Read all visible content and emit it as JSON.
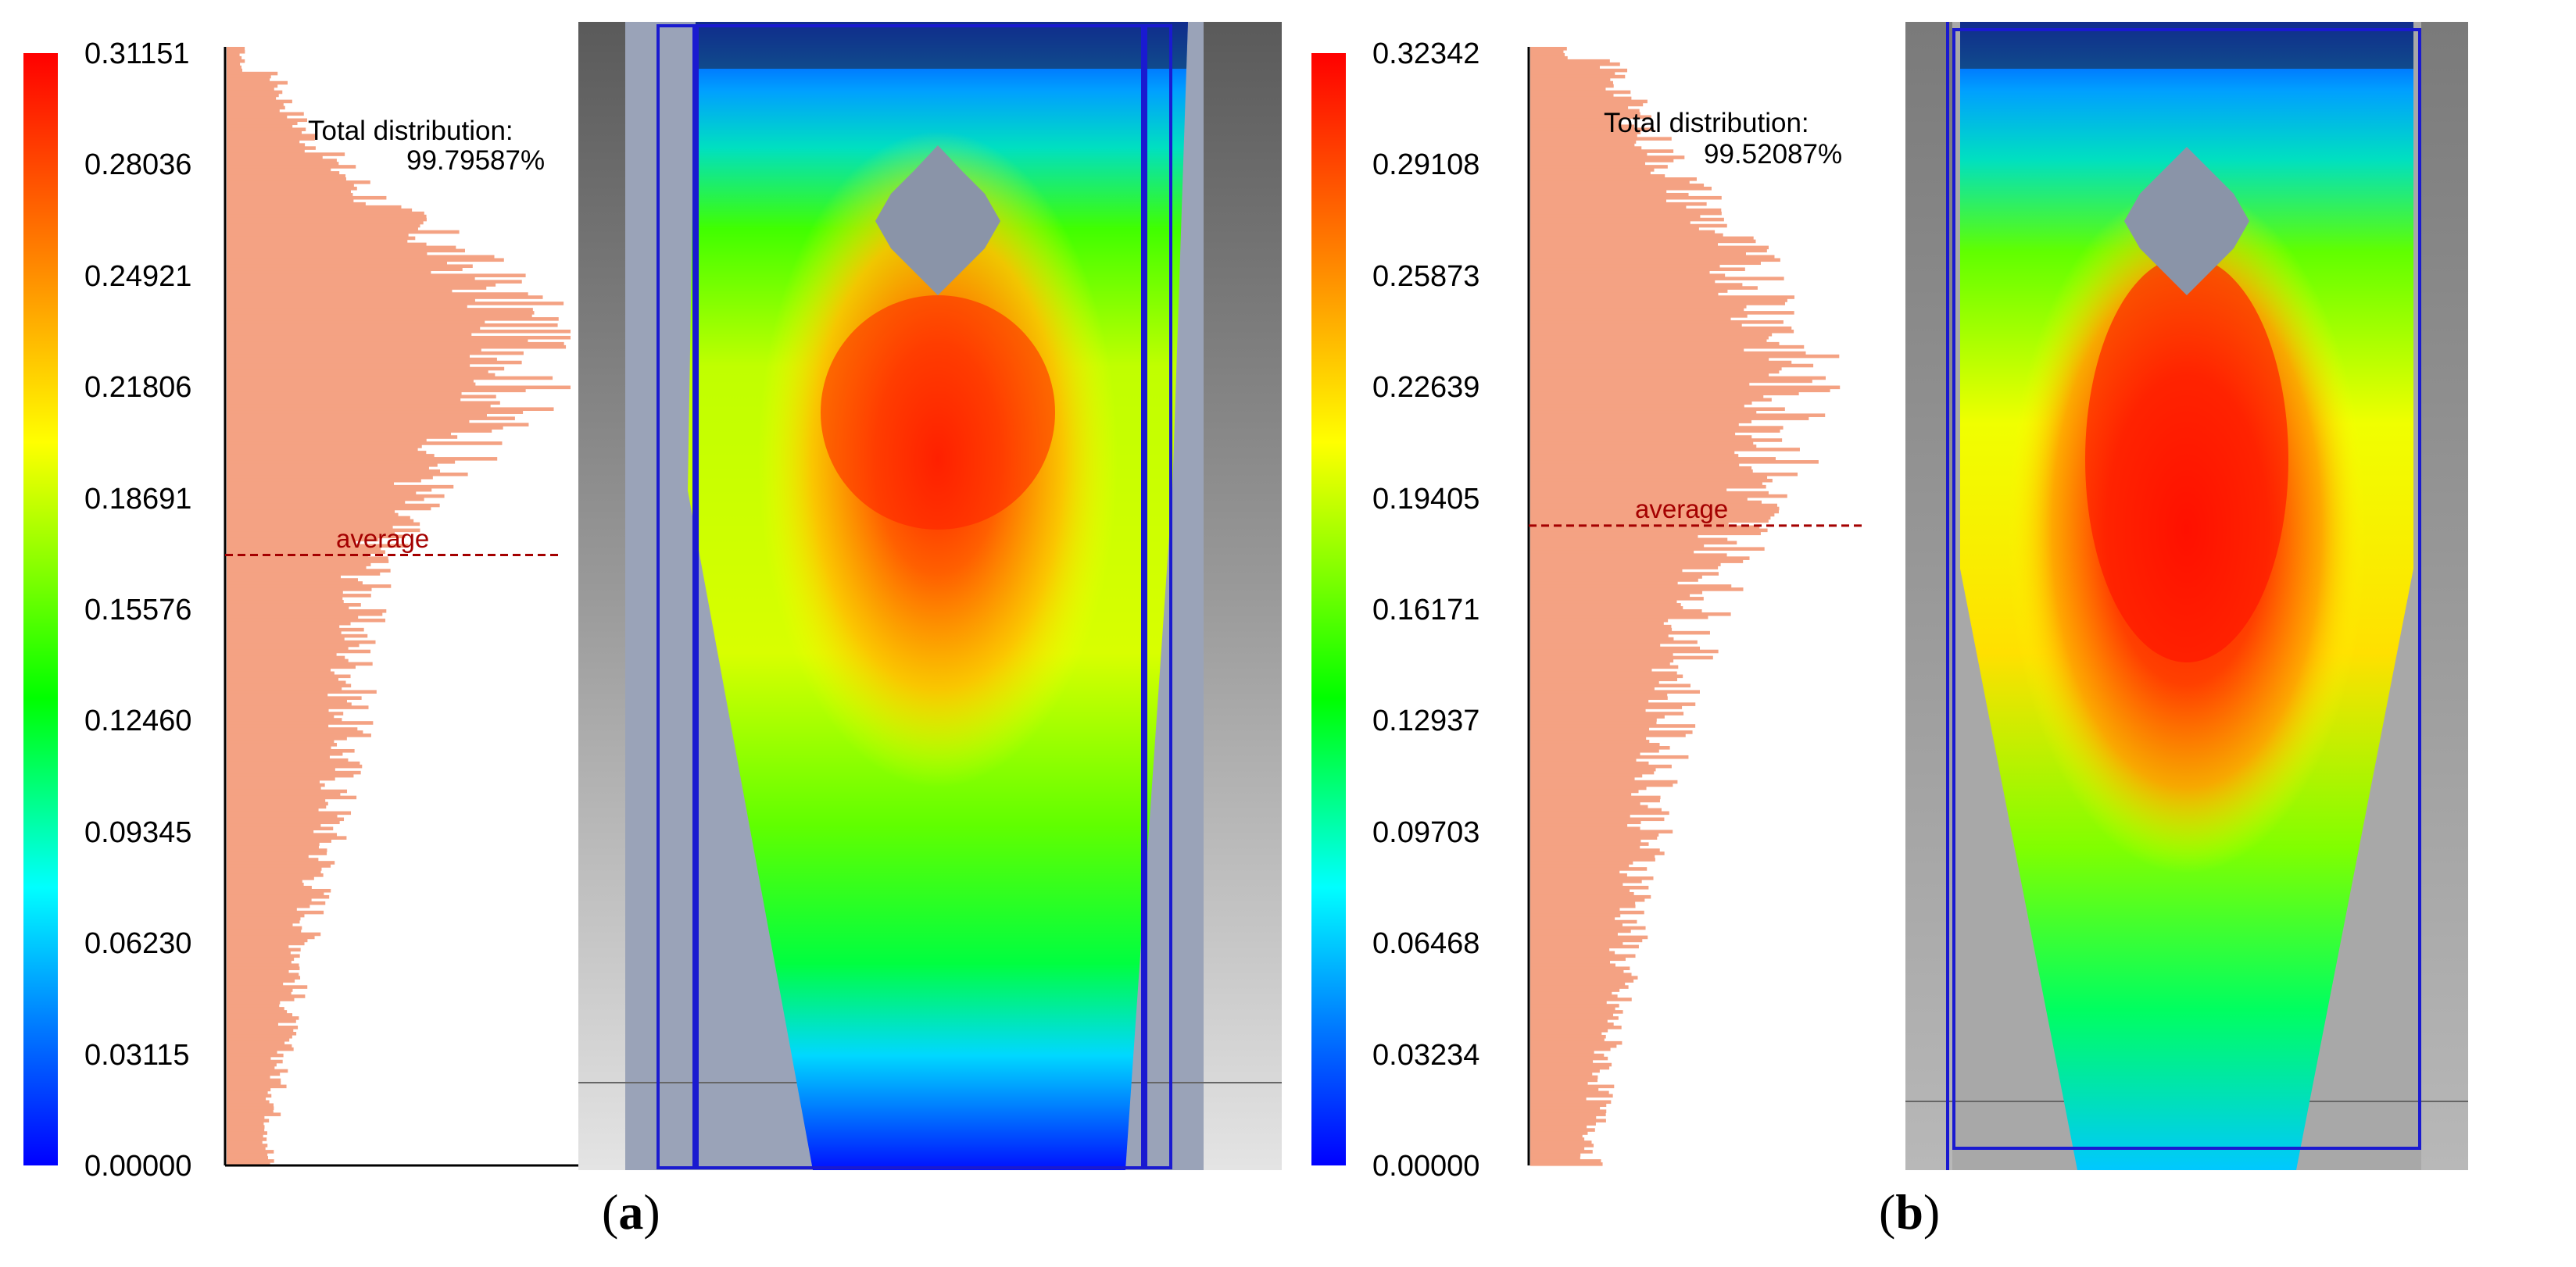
{
  "panels": [
    {
      "id": "a",
      "caption_open": "(",
      "caption_letter": "a",
      "caption_close": ")",
      "scale_ticks": [
        "0.31151",
        "0.28036",
        "0.24921",
        "0.21806",
        "0.18691",
        "0.15576",
        "0.12460",
        "0.09345",
        "0.06230",
        "0.03115",
        "0.00000"
      ],
      "distribution_title": "Total distribution:",
      "distribution_value": "99.79587%",
      "average_label": "average",
      "average_value": 0.17
    },
    {
      "id": "b",
      "caption_open": "(",
      "caption_letter": "b",
      "caption_close": ")",
      "scale_ticks": [
        "0.32342",
        "0.29108",
        "0.25873",
        "0.22639",
        "0.19405",
        "0.16171",
        "0.12937",
        "0.09703",
        "0.06468",
        "0.03234",
        "0.00000"
      ],
      "distribution_title": "Total distribution:",
      "distribution_value": "99.52087%",
      "average_label": "average",
      "average_value": 0.185
    }
  ],
  "colors": {
    "histogram_bar": "#f4a283",
    "average_line": "#a40000",
    "outline": "#1a1ad0",
    "background_grey": "#9aa3b8"
  }
}
